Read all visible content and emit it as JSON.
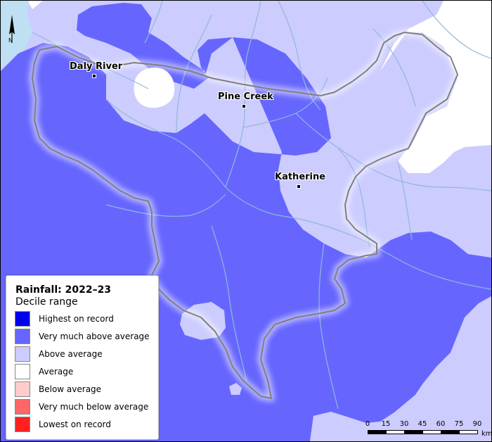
{
  "map": {
    "legend": {
      "title": "Rainfall: 2022–23",
      "subtitle": "Decile range",
      "items": [
        {
          "label": "Highest on record",
          "color": "#0000ee"
        },
        {
          "label": "Very much above average",
          "color": "#6666ff"
        },
        {
          "label": "Above average",
          "color": "#ccccff"
        },
        {
          "label": "Average",
          "color": "#ffffff"
        },
        {
          "label": "Below average",
          "color": "#ffcccc"
        },
        {
          "label": "Very much below average",
          "color": "#ff6666"
        },
        {
          "label": "Lowest on record",
          "color": "#ff2020"
        }
      ]
    },
    "towns": [
      {
        "name": "Daly River"
      },
      {
        "name": "Pine Creek"
      },
      {
        "name": "Katherine"
      }
    ],
    "north_label": "N",
    "scale": {
      "ticks": [
        "0",
        "15",
        "30",
        "45",
        "60",
        "75",
        "90"
      ],
      "unit": "km"
    },
    "colors": {
      "sea": "#bfdff2",
      "river": "#8fb8d8",
      "boundary": "#808080"
    }
  }
}
